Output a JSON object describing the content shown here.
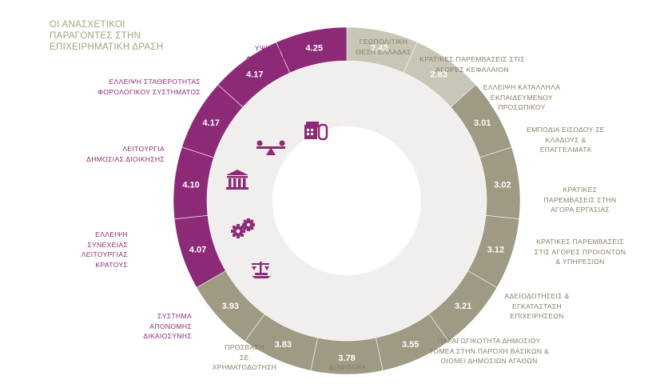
{
  "chart_data": {
    "type": "donut",
    "title_lines": [
      "ΟΙ ΑΝΑΣΧΕΤΙΚΟΙ",
      "ΠΑΡΑΓΟΝΤΕΣ ΣΤΗΝ",
      "ΕΠΙΧΕΙΡΗΜΑΤΙΚΗ ΔΡΑΣΗ"
    ],
    "colors": {
      "purple": "#8c2a78",
      "gray": "#9e9a83",
      "light": "#c8c6b6",
      "inner": "#f0efed",
      "label_purple": "#8c2a78",
      "label_gray": "#857f66"
    },
    "segments": [
      {
        "value": 2.42,
        "label_lines": [
          "ΓΕΩΠΟΛΙΤΙΚΗ",
          "ΘΕΣΗ ΕΛΛΑΔΑΣ"
        ],
        "color_key": "light"
      },
      {
        "value": 2.83,
        "label_lines": [
          "ΚΡΑΤΙΚΕΣ ΠΑΡΕΜΒΑΣΕΙΣ ΣΤΙΣ",
          "ΑΓΟΡΕΣ ΚΕΦΑΛΑΙΟΝ"
        ],
        "color_key": "light"
      },
      {
        "value": 3.01,
        "label_lines": [
          "ΕΛΛΕΙΨΗ ΚΑΤΑΛΛΗΛΑ",
          "ΕΚΠΑΙΔΕΥΜΕΝΟΥ",
          "ΠΡΟΣΩΠΙΚΟΥ"
        ],
        "color_key": "gray"
      },
      {
        "value": 3.02,
        "label_lines": [
          "ΕΜΠΟΔΙΑ ΕΙΣΟΔΟΥ ΣΕ",
          "ΚΛΑΔΟΥΣ &",
          "ΕΠΑΓΓΕΛΜΑΤΑ"
        ],
        "color_key": "gray"
      },
      {
        "value": 3.12,
        "label_lines": [
          "ΚΡΑΤΙΚΕΣ",
          "ΠΑΡΕΜΒΑΣΕΙΣ ΣΤΗΝ",
          "ΑΓΟΡΑ ΕΡΓΑΣΙΑΣ"
        ],
        "color_key": "gray"
      },
      {
        "value": 3.21,
        "label_lines": [
          "ΚΡΑΤΙΚΕΣ ΠΑΡΕΜΒΑΣΕΙΣ",
          "ΣΤΙΣ ΑΓΟΡΕΣ ΠΡΟΙΟΝΤΩΝ",
          "& ΥΠΗΡΕΣΙΩΝ"
        ],
        "color_key": "gray"
      },
      {
        "value": 3.55,
        "label_lines": [
          "ΑΔΕΙΟΔΟΤΗΣΕΙΣ &",
          "ΕΓΚΑΤΑΣΤΑΣΗ",
          "ΕΠΙΧΕΙΡΗΣΕΩΝ"
        ],
        "color_key": "gray"
      },
      {
        "value": 3.78,
        "label_lines": [
          "ΠΑΡΑΓΩΓΙΚΟΤΗΤΑ ΔΗΜΟΣΙΟΥ",
          "ΤΟΜΕΑ ΣΤΗΝ ΠΑΡΟΧΗ ΒΑΣΙΚΩΝ &",
          "ΟΙΟΝΕΙ ΔΗΜΟΣΙΩΝ ΑΓΑΘΩΝ"
        ],
        "color_key": "gray"
      },
      {
        "value": 3.83,
        "label_lines": [
          "ΔΙΑΦΘΟΡΑ"
        ],
        "color_key": "gray"
      },
      {
        "value": 3.93,
        "label_lines": [
          "ΠΡΟΣΒΑΣΗ",
          "ΣΕ",
          "ΧΡΗΜΑΤΟΔΟΤΗΣΗ"
        ],
        "color_key": "gray"
      },
      {
        "value": 4.07,
        "label_lines": [
          "ΣΥΣΤΗΜΑ",
          "ΑΠΟΝΟΜΗΣ",
          "ΔΙΚΑΙΟΣΥΝΗΣ"
        ],
        "color_key": "purple"
      },
      {
        "value": 4.1,
        "label_lines": [
          "ΕΛΛΕΙΨΗ",
          "ΣΥΝΕΧΕΙΑΣ",
          "ΛΕΙΤΟΥΡΓΙΑΣ",
          "ΚΡΑΤΟΥΣ"
        ],
        "color_key": "purple"
      },
      {
        "value": 4.17,
        "label_lines": [
          "ΛΕΙΤΟΥΡΓΙΑ",
          "ΔΗΜΟΣΙΑΣ ΔΙΟΙΚΗΣΗΣ"
        ],
        "color_key": "purple"
      },
      {
        "value": 4.17,
        "label_lines": [
          "ΕΛΛΕΙΨΗ ΣΤΑΘΕΡΟΤΗΤΑΣ",
          "ΦΟΡΟΛΟΓΙΚΟΥ ΣΥΣΤΗΜΑΤΟΣ"
        ],
        "color_key": "purple"
      },
      {
        "value": 4.25,
        "label_lines": [
          "ΥΨΗΛΗ",
          "ΦΟΡΟΛΟΓΙΑ"
        ],
        "color_key": "purple"
      }
    ],
    "icons": [
      "tax-document-icon",
      "balance-scale-icon",
      "government-building-icon",
      "gears-icon",
      "justice-scales-icon"
    ]
  }
}
